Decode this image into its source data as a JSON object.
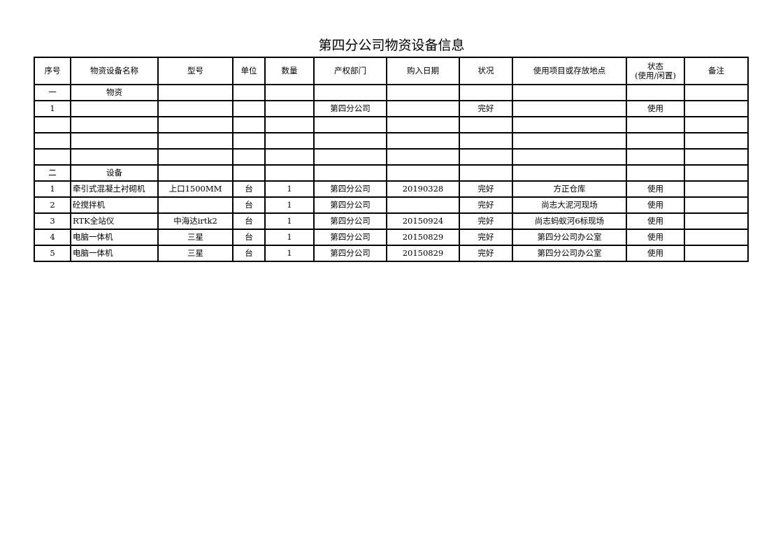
{
  "title": "第四分公司物资设备信息",
  "columns": [
    "序号",
    "物资设备名称",
    "型号",
    "单位",
    "数量",
    "产权部门",
    "购入日期",
    "状况",
    "使用项目或存放地点",
    "状态",
    "(使用/闲置)",
    "备注"
  ],
  "rows": [
    {
      "seq": "一",
      "name": "物资",
      "model": "",
      "unit": "",
      "qty": "",
      "dept": "",
      "date": "",
      "cond": "",
      "loc": "",
      "status": "",
      "note": "",
      "section": true
    },
    {
      "seq": "1",
      "name": "",
      "model": "",
      "unit": "",
      "qty": "",
      "dept": "第四分公司",
      "date": "",
      "cond": "完好",
      "loc": "",
      "status": "使用",
      "note": ""
    },
    {
      "seq": "",
      "name": "",
      "model": "",
      "unit": "",
      "qty": "",
      "dept": "",
      "date": "",
      "cond": "",
      "loc": "",
      "status": "",
      "note": ""
    },
    {
      "seq": "",
      "name": "",
      "model": "",
      "unit": "",
      "qty": "",
      "dept": "",
      "date": "",
      "cond": "",
      "loc": "",
      "status": "",
      "note": ""
    },
    {
      "seq": "",
      "name": "",
      "model": "",
      "unit": "",
      "qty": "",
      "dept": "",
      "date": "",
      "cond": "",
      "loc": "",
      "status": "",
      "note": ""
    },
    {
      "seq": "二",
      "name": "设备",
      "model": "",
      "unit": "",
      "qty": "",
      "dept": "",
      "date": "",
      "cond": "",
      "loc": "",
      "status": "",
      "note": "",
      "section": true
    },
    {
      "seq": "1",
      "name": "牵引式混凝土衬砌机",
      "model": "上口1500MM",
      "unit": "台",
      "qty": "1",
      "dept": "第四分公司",
      "date": "20190328",
      "cond": "完好",
      "loc": "方正仓库",
      "status": "使用",
      "note": ""
    },
    {
      "seq": "2",
      "name": "砼搅拌机",
      "model": "",
      "unit": "台",
      "qty": "1",
      "dept": "第四分公司",
      "date": "",
      "cond": "完好",
      "loc": "尚志大泥河现场",
      "status": "使用",
      "note": ""
    },
    {
      "seq": "3",
      "name": "RTK全站仪",
      "model": "中海达irtk2",
      "unit": "台",
      "qty": "1",
      "dept": "第四分公司",
      "date": "20150924",
      "cond": "完好",
      "loc": "尚志蚂蚁河6标现场",
      "status": "使用",
      "note": ""
    },
    {
      "seq": "4",
      "name": "电脑一体机",
      "model": "三星",
      "unit": "台",
      "qty": "1",
      "dept": "第四分公司",
      "date": "20150829",
      "cond": "完好",
      "loc": "第四分公司办公室",
      "status": "使用",
      "note": ""
    },
    {
      "seq": "5",
      "name": "电脑一体机",
      "model": "三星",
      "unit": "台",
      "qty": "1",
      "dept": "第四分公司",
      "date": "20150829",
      "cond": "完好",
      "loc": "第四分公司办公室",
      "status": "使用",
      "note": ""
    }
  ]
}
